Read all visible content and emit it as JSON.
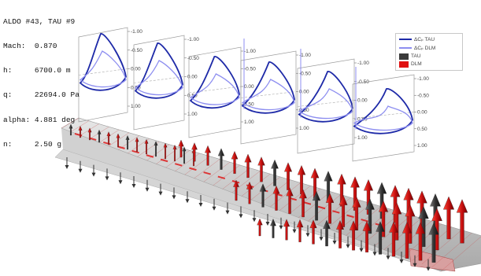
{
  "info": {
    "title": "ALDO #43, TAU #9",
    "lines": [
      "Mach:  0.870",
      "h:     6700.0 m",
      "q:     22694.0 Pa",
      "alpha: 4.881 deg",
      "n:     2.50 g"
    ]
  },
  "legend": {
    "tau_line": "ΔCₚ TAU",
    "dlm_line": "ΔCₚ DLM",
    "tau_arrow": "TAU",
    "dlm_arrow": "DLM"
  },
  "colors": {
    "tau_line": "#1e2aa8",
    "dlm_line": "#8d8ef0",
    "tau_arrow": "#3a3a3a",
    "dlm_arrow": "#e01010",
    "wing": "#c9c9c9"
  },
  "axis_ticks": [
    "-1.00",
    "-0.50",
    "0.00",
    "0.50",
    "1.00"
  ]
}
